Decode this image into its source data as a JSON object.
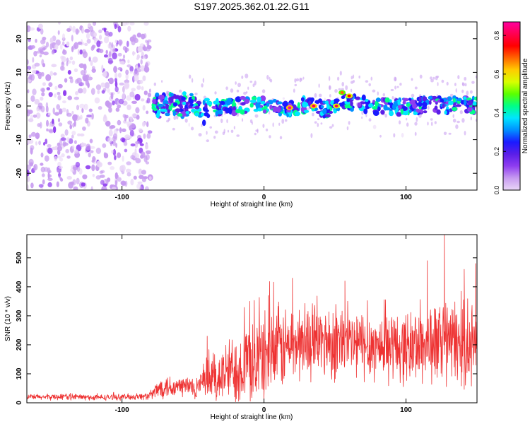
{
  "title": "S197.2025.362.01.22.G11",
  "chart_data": [
    {
      "type": "heatmap",
      "title": "S197.2025.362.01.22.G11",
      "xlabel": "Height of straight line (km)",
      "ylabel": "Frequency (Hz)",
      "xlim": [
        -167,
        150
      ],
      "ylim": [
        -25,
        25
      ],
      "x_ticks": [
        -100,
        0,
        100
      ],
      "y_ticks": [
        -20,
        -10,
        0,
        10,
        20
      ],
      "colorbar": {
        "label": "Normalized spectral amplitude",
        "range": [
          0.0,
          0.87
        ],
        "ticks": [
          "0.0",
          "0.2",
          "0.4",
          "0.6",
          "0.8"
        ],
        "colors": [
          "#e9d6f7",
          "#c79bf0",
          "#8f3df0",
          "#5a1ee8",
          "#1a1aff",
          "#0090ff",
          "#00e5ff",
          "#00ff88",
          "#5aff00",
          "#d8ff00",
          "#ffcc00",
          "#ff6600",
          "#ff0000",
          "#ff0050",
          "#ff00a0"
        ]
      },
      "regions": [
        {
          "name": "broadband noise",
          "x_range": [
            -167,
            -80
          ],
          "freq_range": [
            -25,
            25
          ],
          "amplitude": 0.05
        },
        {
          "name": "signal track",
          "x_range": [
            -78,
            150
          ],
          "center_freq_hz": 0,
          "bandwidth_hz": 3,
          "amplitude": 0.35
        }
      ],
      "track_center": {
        "x": [
          -78,
          -70,
          -60,
          -50,
          -40,
          -30,
          -20,
          -10,
          0,
          10,
          20,
          30,
          40,
          45,
          50,
          55,
          60,
          70,
          80,
          90,
          100,
          110,
          120,
          130,
          140,
          150
        ],
        "freq": [
          0.5,
          0.0,
          0.5,
          0.0,
          -1.5,
          0.0,
          0.0,
          0.5,
          0.0,
          -0.5,
          -0.5,
          0.5,
          -0.5,
          -1.0,
          0.0,
          2.0,
          1.0,
          0.5,
          0.0,
          -0.5,
          0.0,
          0.0,
          0.5,
          0.0,
          0.5,
          0.0
        ]
      },
      "hotspots": [
        {
          "x": 18,
          "freq": -0.5,
          "amplitude": 0.85
        },
        {
          "x": 35,
          "freq": 0.0,
          "amplitude": 0.8
        },
        {
          "x": 51,
          "freq": 0.0,
          "amplitude": 0.78
        },
        {
          "x": 55,
          "freq": 4.0,
          "amplitude": 0.7
        },
        {
          "x": 60,
          "freq": 3.0,
          "amplitude": 0.75
        }
      ]
    },
    {
      "type": "line",
      "xlabel": "Height of straight line (km)",
      "ylabel": "SNR (10 * v/v)",
      "xlim": [
        -167,
        150
      ],
      "ylim": [
        0,
        580
      ],
      "x_ticks": [
        -100,
        0,
        100
      ],
      "y_ticks": [
        0,
        100,
        200,
        300,
        400,
        500
      ],
      "series": [
        {
          "name": "SNR",
          "color": "#ee3333",
          "x": [
            -167,
            -150,
            -140,
            -120,
            -100,
            -85,
            -80,
            -75,
            -70,
            -65,
            -60,
            -55,
            -50,
            -45,
            -40,
            -35,
            -30,
            -25,
            -20,
            -15,
            -10,
            -5,
            0,
            5,
            10,
            20,
            30,
            40,
            50,
            60,
            70,
            80,
            90,
            100,
            110,
            120,
            130,
            140,
            150
          ],
          "mean": [
            20,
            20,
            22,
            18,
            20,
            22,
            25,
            45,
            60,
            55,
            55,
            60,
            50,
            55,
            80,
            90,
            90,
            110,
            120,
            130,
            140,
            145,
            160,
            170,
            185,
            200,
            210,
            215,
            210,
            200,
            200,
            195,
            195,
            190,
            200,
            205,
            210,
            200,
            200
          ],
          "spread": [
            12,
            12,
            14,
            12,
            12,
            14,
            18,
            40,
            50,
            50,
            45,
            50,
            45,
            55,
            100,
            110,
            120,
            130,
            150,
            160,
            170,
            180,
            180,
            180,
            180,
            160,
            150,
            150,
            160,
            150,
            150,
            140,
            140,
            150,
            160,
            170,
            180,
            170,
            170
          ]
        }
      ],
      "peaks": [
        {
          "x": -40,
          "y": 230
        },
        {
          "x": -10,
          "y": 350
        },
        {
          "x": 3,
          "y": 370
        },
        {
          "x": 20,
          "y": 430
        },
        {
          "x": 57,
          "y": 420
        },
        {
          "x": 115,
          "y": 490
        },
        {
          "x": 127,
          "y": 578
        },
        {
          "x": 141,
          "y": 460
        },
        {
          "x": 149,
          "y": 480
        }
      ]
    }
  ]
}
